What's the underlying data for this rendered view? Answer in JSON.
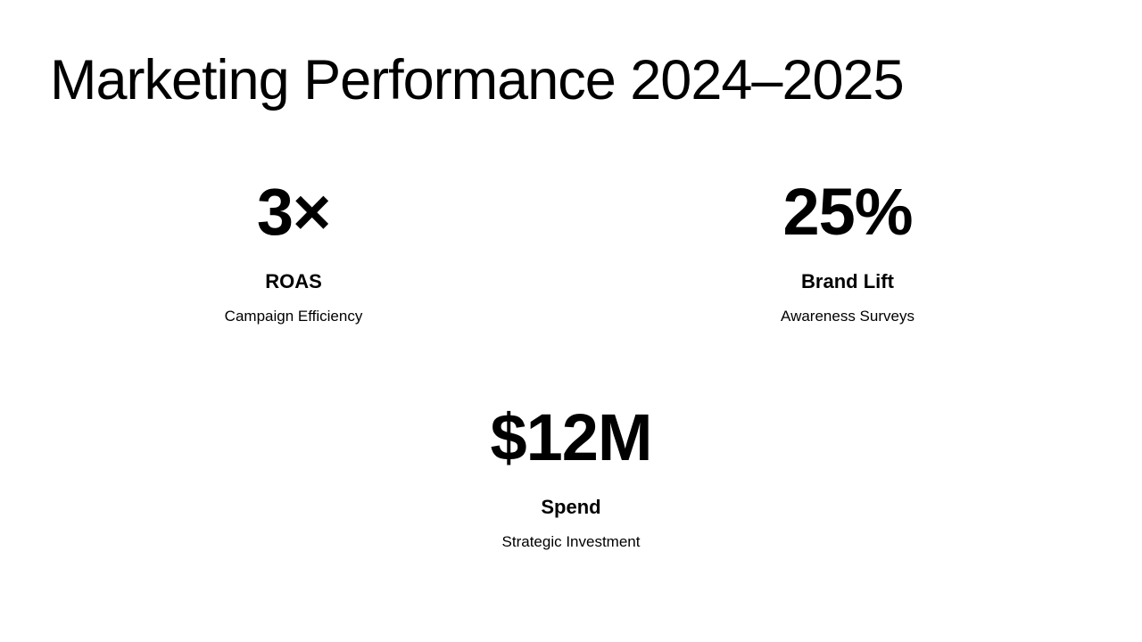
{
  "title": "Marketing Performance 2024–2025",
  "stats": [
    {
      "value": "3×",
      "label": "ROAS",
      "description": "Campaign Efficiency"
    },
    {
      "value": "25%",
      "label": "Brand Lift",
      "description": "Awareness Surveys"
    },
    {
      "value": "$12M",
      "label": "Spend",
      "description": "Strategic Investment"
    }
  ]
}
